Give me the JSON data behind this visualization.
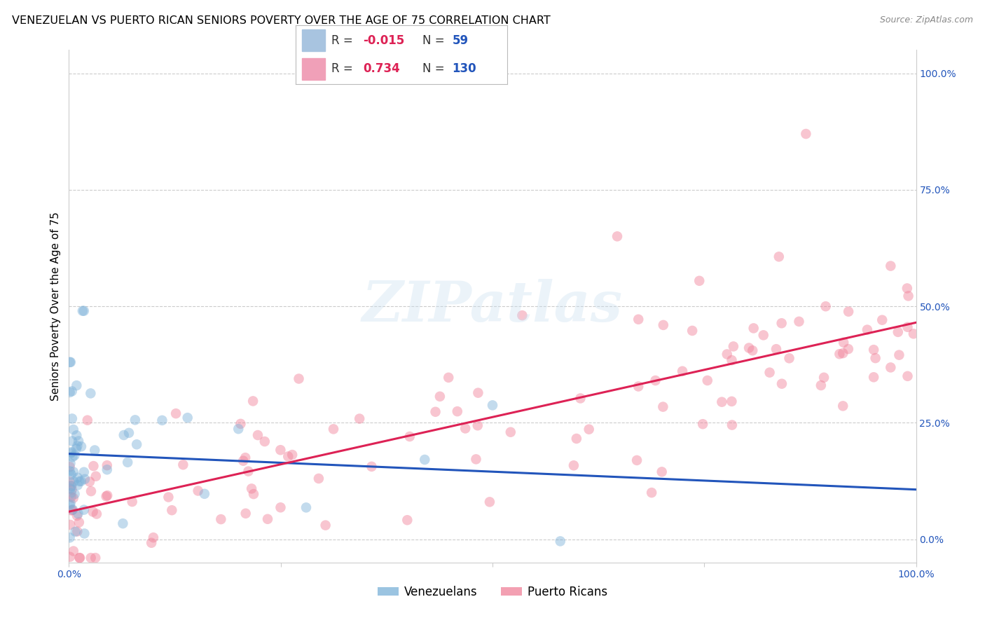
{
  "title": "VENEZUELAN VS PUERTO RICAN SENIORS POVERTY OVER THE AGE OF 75 CORRELATION CHART",
  "source": "Source: ZipAtlas.com",
  "ylabel": "Seniors Poverty Over the Age of 75",
  "xlim": [
    0,
    1.0
  ],
  "ylim": [
    -0.05,
    1.05
  ],
  "x_ticks": [
    0.0,
    0.25,
    0.5,
    0.75,
    1.0
  ],
  "x_tick_labels": [
    "0.0%",
    "",
    "",
    "",
    "100.0%"
  ],
  "y_ticks_right": [
    1.0,
    0.75,
    0.5,
    0.25,
    0.0
  ],
  "y_tick_labels_right": [
    "100.0%",
    "75.0%",
    "50.0%",
    "25.0%",
    "0.0%"
  ],
  "venezuelan_R": -0.015,
  "venezuelan_N": 59,
  "puertoRican_R": 0.734,
  "puertoRican_N": 130,
  "dot_size": 110,
  "dot_alpha": 0.45,
  "venezuelan_color": "#7ab0d8",
  "puertoRican_color": "#f08098",
  "venezuelan_line_color": "#2255bb",
  "puertoRican_line_color": "#dd2255",
  "grid_color": "#cccccc",
  "dashed_line_color": "#b0c8e0",
  "background_color": "#ffffff",
  "watermark_color": "#c8dff0",
  "watermark_alpha": 0.35,
  "legend_box_color": "#a8c4e0",
  "legend_box_color2": "#f0a0b8",
  "r1_val": "-0.015",
  "n1_val": "59",
  "r2_val": "0.734",
  "n2_val": "130",
  "title_fontsize": 11.5,
  "axis_label_fontsize": 11,
  "tick_fontsize": 10,
  "legend_fontsize": 12,
  "source_fontsize": 9
}
